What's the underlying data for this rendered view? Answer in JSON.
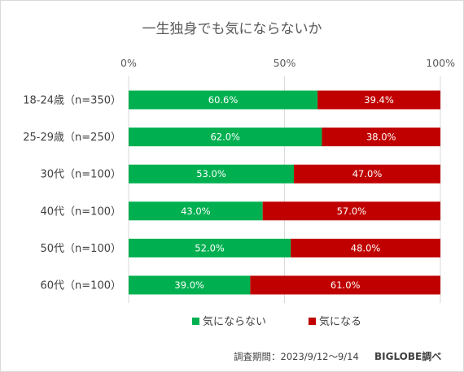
{
  "chart_data": {
    "type": "bar",
    "orientation": "horizontal",
    "stacked": true,
    "title": "一生独身でも気にならないか",
    "categories": [
      "18-24歳（n=350）",
      "25-29歳（n=250）",
      "30代（n=100）",
      "40代（n=100）",
      "50代（n=100）",
      "60代（n=100）"
    ],
    "series": [
      {
        "name": "気にならない",
        "color": "#00b050",
        "values": [
          60.6,
          62.0,
          53.0,
          43.0,
          52.0,
          39.0
        ],
        "labels": [
          "60.6%",
          "62.0%",
          "53.0%",
          "43.0%",
          "52.0%",
          "39.0%"
        ]
      },
      {
        "name": "気になる",
        "color": "#c00000",
        "values": [
          39.4,
          38.0,
          47.0,
          57.0,
          48.0,
          61.0
        ],
        "labels": [
          "39.4%",
          "38.0%",
          "47.0%",
          "57.0%",
          "48.0%",
          "61.0%"
        ]
      }
    ],
    "xlim": [
      0,
      100
    ],
    "x_ticks": [
      "0%",
      "50%",
      "100%"
    ],
    "x_tick_values": [
      0,
      50,
      100
    ],
    "axis_position": "top",
    "grid": true,
    "legend_position": "bottom"
  },
  "footer": {
    "note": "調査期間：2023/9/12～9/14",
    "credit": "BIGLOBE調べ"
  }
}
